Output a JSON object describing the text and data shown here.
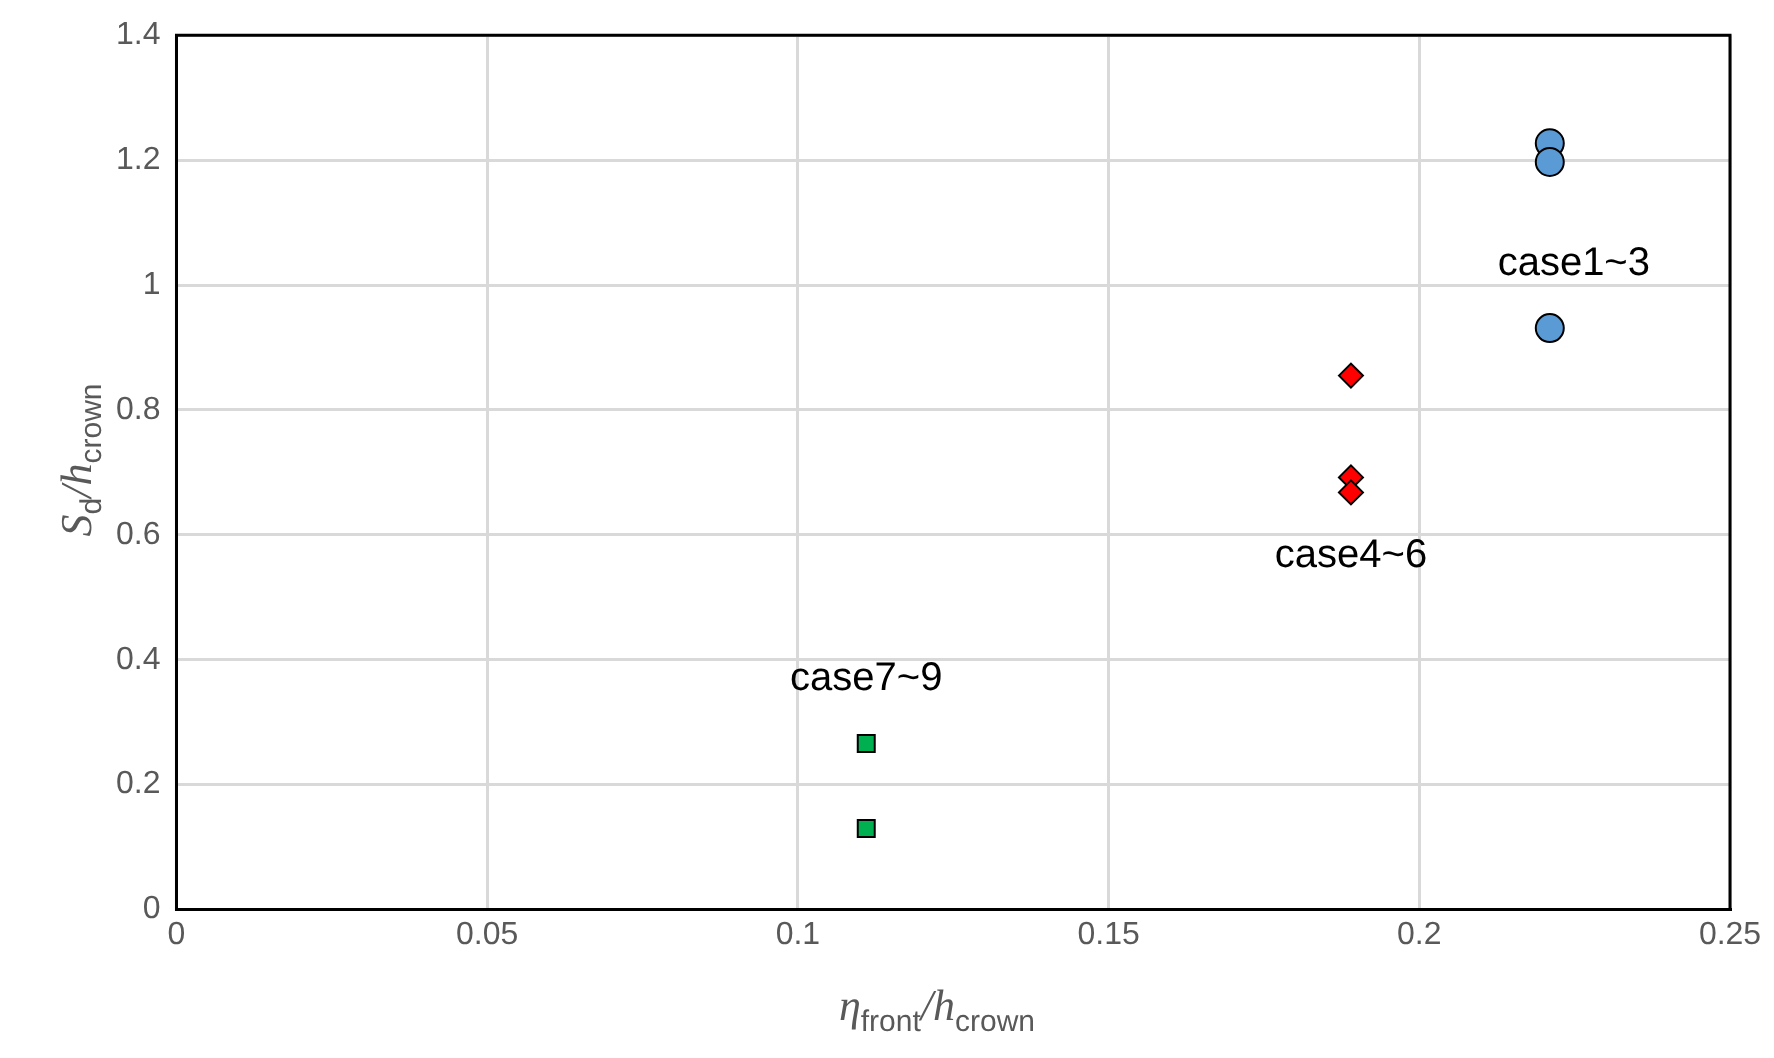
{
  "chart_data": {
    "type": "scatter",
    "xlabel": "η$_{front}$/h$_{crown}$",
    "ylabel": "S$_{d}$/h$_{crown}$",
    "xlim": [
      0,
      0.25
    ],
    "xticks": [
      0,
      0.05,
      0.1,
      0.15,
      0.2,
      0.25
    ],
    "ylim": [
      0,
      1.4
    ],
    "yticks": [
      0,
      0.2,
      0.4,
      0.6,
      0.8,
      1,
      1.2,
      1.4
    ],
    "grid": true,
    "legend": false,
    "series": [
      {
        "color": "#5b9bd5",
        "marker": "circle",
        "x": [
          0.221,
          0.221,
          0.221
        ],
        "values": [
          1.227,
          1.197,
          0.931
        ]
      },
      {
        "color": "#ff0000",
        "marker": "diamond",
        "x": [
          0.189,
          0.189,
          0.189
        ],
        "values": [
          0.855,
          0.692,
          0.668
        ]
      },
      {
        "color": "#00b050",
        "marker": "square",
        "x": [
          0.111,
          0.111
        ],
        "values": [
          0.266,
          0.13
        ]
      }
    ],
    "annotations": [
      "case1~3",
      "case4~6",
      "case7~9"
    ]
  }
}
